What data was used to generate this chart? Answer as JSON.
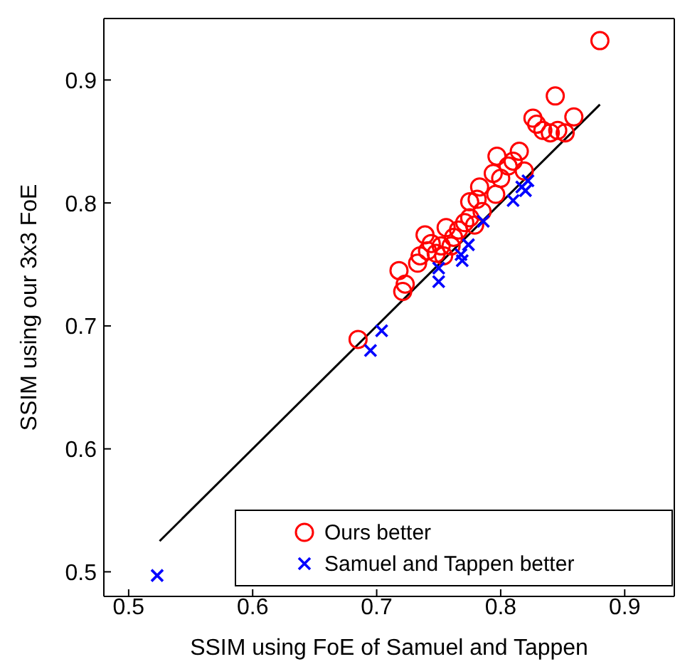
{
  "chart_data": {
    "type": "scatter",
    "xlabel": "SSIM using FoE of Samuel and Tappen",
    "ylabel": "SSIM using our 3x3 FoE",
    "xlim": [
      0.48,
      0.94
    ],
    "ylim": [
      0.48,
      0.95
    ],
    "xticks": [
      0.5,
      0.6,
      0.7,
      0.8,
      0.9
    ],
    "yticks": [
      0.5,
      0.6,
      0.7,
      0.8,
      0.9
    ],
    "grid": false,
    "legend": "bottom right",
    "series": [
      {
        "name": "Ours better",
        "marker": "circle",
        "color": "#ff0000",
        "x": [
          0.88,
          0.844,
          0.826,
          0.829,
          0.834,
          0.84,
          0.846,
          0.852,
          0.859,
          0.797,
          0.815,
          0.81,
          0.819,
          0.794,
          0.8,
          0.806,
          0.783,
          0.796,
          0.775,
          0.781,
          0.785,
          0.775,
          0.771,
          0.779,
          0.739,
          0.756,
          0.766,
          0.762,
          0.744,
          0.752,
          0.76,
          0.741,
          0.748,
          0.735,
          0.733,
          0.754,
          0.718,
          0.723,
          0.721,
          0.685
        ],
        "values": [
          0.932,
          0.887,
          0.869,
          0.864,
          0.859,
          0.857,
          0.859,
          0.857,
          0.87,
          0.838,
          0.842,
          0.834,
          0.826,
          0.824,
          0.82,
          0.83,
          0.813,
          0.807,
          0.801,
          0.803,
          0.793,
          0.788,
          0.784,
          0.782,
          0.774,
          0.78,
          0.778,
          0.772,
          0.767,
          0.765,
          0.765,
          0.761,
          0.759,
          0.757,
          0.751,
          0.757,
          0.745,
          0.734,
          0.728,
          0.689
        ]
      },
      {
        "name": "Samuel and Tappen better",
        "marker": "cross",
        "color": "#0000ff",
        "x": [
          0.523,
          0.695,
          0.704,
          0.75,
          0.75,
          0.768,
          0.769,
          0.774,
          0.786,
          0.81,
          0.817,
          0.822,
          0.82
        ],
        "values": [
          0.497,
          0.68,
          0.696,
          0.747,
          0.736,
          0.758,
          0.753,
          0.766,
          0.785,
          0.802,
          0.813,
          0.818,
          0.81
        ]
      },
      {
        "type": "line",
        "color": "#000000",
        "x": [
          0.525,
          0.88
        ],
        "values": [
          0.525,
          0.88
        ]
      }
    ]
  }
}
